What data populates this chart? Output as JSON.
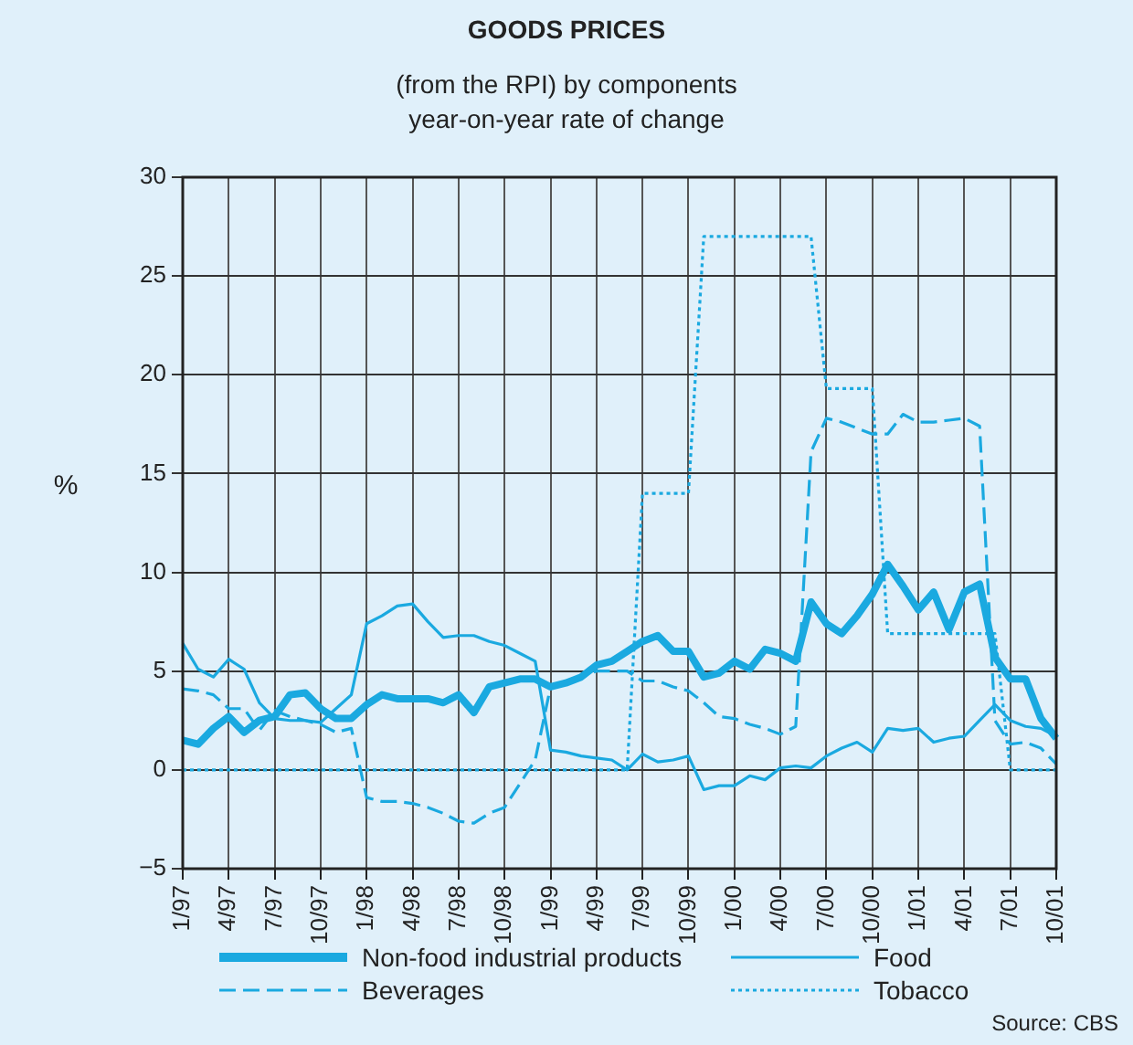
{
  "chart_data": {
    "type": "line",
    "title": "GOODS PRICES",
    "subtitle": "(from the RPI)  by components\nyear-on-year rate of change",
    "ylabel": "%",
    "categories": [
      "1/97",
      null,
      null,
      "4/97",
      null,
      null,
      "7/97",
      null,
      null,
      "10/97",
      null,
      null,
      "1/98",
      null,
      null,
      "4/98",
      null,
      null,
      "7/98",
      null,
      null,
      "10/98",
      null,
      null,
      "1/99",
      null,
      null,
      "4/99",
      null,
      null,
      "7/99",
      null,
      null,
      "10/99",
      null,
      null,
      "1/00",
      null,
      null,
      "4/00",
      null,
      null,
      "7/00",
      null,
      null,
      "10/00",
      null,
      null,
      "1/01",
      null,
      null,
      "4/01",
      null,
      null,
      "7/01",
      null,
      null,
      "10/01"
    ],
    "series": [
      {
        "name": "Non-food industrial products",
        "color": "#1aa9e0",
        "line_style": "solid",
        "values": [
          1.5,
          1.3,
          2.1,
          2.7,
          1.9,
          2.5,
          2.7,
          3.8,
          3.9,
          3.1,
          2.6,
          2.6,
          3.3,
          3.8,
          3.6,
          3.6,
          3.6,
          3.4,
          3.8,
          2.9,
          4.2,
          4.4,
          4.6,
          4.6,
          4.2,
          4.4,
          4.7,
          5.3,
          5.5,
          6.0,
          6.5,
          6.8,
          6.0,
          6.0,
          4.7,
          4.9,
          5.5,
          5.1,
          6.1,
          5.9,
          5.5,
          8.5,
          7.4,
          6.9,
          7.8,
          8.9,
          10.4,
          9.3,
          8.1,
          9.0,
          7.1,
          9.0,
          9.4,
          5.7,
          4.6,
          4.6,
          2.6,
          1.6
        ]
      },
      {
        "name": "Food",
        "color": "#1aa9e0",
        "line_style": "solid",
        "values": [
          6.4,
          5.1,
          4.7,
          5.6,
          5.1,
          3.4,
          2.6,
          2.5,
          2.5,
          2.4,
          3.1,
          3.8,
          7.4,
          7.8,
          8.3,
          8.4,
          7.5,
          6.7,
          6.8,
          6.8,
          6.5,
          6.3,
          5.9,
          5.5,
          1.0,
          0.9,
          0.7,
          0.6,
          0.5,
          0.0,
          0.8,
          0.4,
          0.5,
          0.7,
          -1.0,
          -0.8,
          -0.8,
          -0.3,
          -0.5,
          0.1,
          0.2,
          0.1,
          0.7,
          1.1,
          1.4,
          0.9,
          2.1,
          2.0,
          2.1,
          1.4,
          1.6,
          1.7,
          2.5,
          3.3,
          2.5,
          2.2,
          2.1,
          1.7
        ]
      },
      {
        "name": "Beverages",
        "color": "#1aa9e0",
        "line_style": "dashed",
        "values": [
          4.1,
          4.0,
          3.8,
          3.1,
          3.1,
          2.0,
          3.0,
          2.7,
          2.5,
          2.3,
          1.9,
          2.1,
          -1.4,
          -1.6,
          -1.6,
          -1.7,
          -1.9,
          -2.2,
          -2.6,
          -2.7,
          -2.2,
          -1.9,
          -0.7,
          0.5,
          4.2,
          4.5,
          4.7,
          5.0,
          5.0,
          5.0,
          4.5,
          4.5,
          4.2,
          4.0,
          3.4,
          2.7,
          2.6,
          2.3,
          2.1,
          1.8,
          2.2,
          16.1,
          17.8,
          17.6,
          17.3,
          17.0,
          17.0,
          18.0,
          17.6,
          17.6,
          17.7,
          17.8,
          17.4,
          2.5,
          1.3,
          1.4,
          1.1,
          0.3
        ]
      },
      {
        "name": "Tobacco",
        "color": "#1aa9e0",
        "line_style": "dotted",
        "values": [
          0,
          0,
          0,
          0,
          0,
          0,
          0,
          0,
          0,
          0,
          0,
          0,
          0,
          0,
          0,
          0,
          0,
          0,
          0,
          0,
          0,
          0,
          0,
          0,
          0,
          0,
          0,
          0,
          0,
          0,
          14.0,
          14.0,
          14.0,
          14.0,
          27.0,
          27.0,
          27.0,
          27.0,
          27.0,
          27.0,
          27.0,
          27.0,
          19.3,
          19.3,
          19.3,
          19.3,
          6.9,
          6.9,
          6.9,
          6.9,
          6.9,
          6.9,
          6.9,
          6.9,
          0,
          0,
          0,
          0
        ]
      }
    ],
    "ylim": [
      -5,
      30
    ],
    "yticks": [
      -5,
      0,
      5,
      10,
      15,
      20,
      25,
      30
    ],
    "grid": true,
    "legend": "bottom",
    "marker": "none",
    "annotations": [
      "Source: CBS"
    ]
  }
}
